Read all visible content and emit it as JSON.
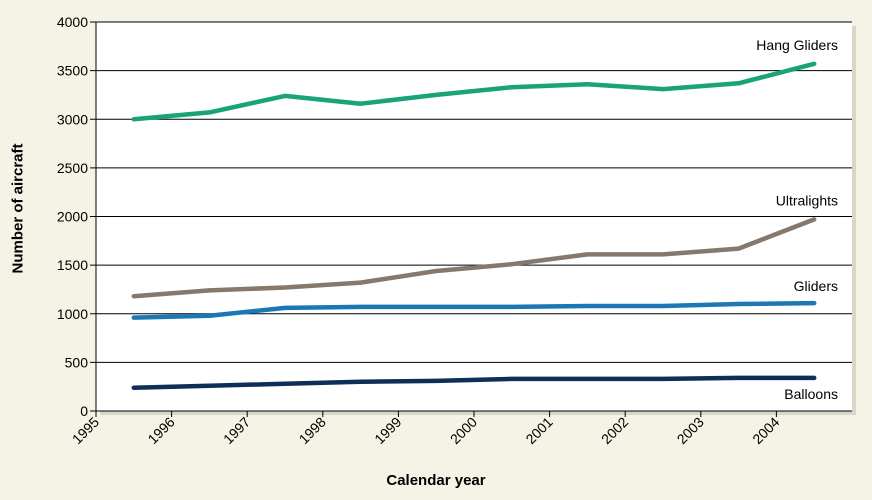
{
  "chart_data": {
    "type": "line",
    "title": "",
    "xlabel": "Calendar year",
    "ylabel": "Number of aircraft",
    "xlim": [
      1995,
      2005
    ],
    "ylim": [
      0,
      4000
    ],
    "yticks": [
      0,
      500,
      1000,
      1500,
      2000,
      2500,
      3000,
      3500,
      4000
    ],
    "xticks": [
      "1995",
      "1996",
      "1997",
      "1998",
      "1999",
      "2000",
      "2001",
      "2002",
      "2003",
      "2004"
    ],
    "x": [
      1995.5,
      1996.5,
      1997.5,
      1998.5,
      1999.5,
      2000.5,
      2001.5,
      2002.5,
      2003.5,
      2004.5
    ],
    "grid": true,
    "series": [
      {
        "name": "Hang Gliders",
        "color": "#1aa27a",
        "values": [
          3000,
          3070,
          3240,
          3160,
          3250,
          3330,
          3360,
          3310,
          3370,
          3570
        ]
      },
      {
        "name": "Ultralights",
        "color": "#86786a",
        "values": [
          1180,
          1240,
          1270,
          1320,
          1440,
          1510,
          1610,
          1610,
          1670,
          1970
        ]
      },
      {
        "name": "Gliders",
        "color": "#1c78b5",
        "values": [
          960,
          980,
          1060,
          1070,
          1070,
          1070,
          1080,
          1080,
          1100,
          1110
        ]
      },
      {
        "name": "Balloons",
        "color": "#0d2f57",
        "values": [
          240,
          260,
          280,
          300,
          310,
          330,
          330,
          330,
          340,
          340
        ]
      }
    ]
  }
}
